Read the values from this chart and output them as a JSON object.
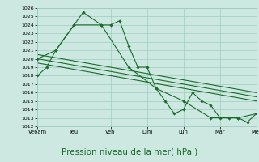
{
  "bg_color": "#cce8e0",
  "grid_color": "#9eccc2",
  "line_color": "#1a6b2a",
  "marker_color": "#1a6b2a",
  "xlabel": "Pression niveau de la mer( hPa )",
  "xlabel_fontsize": 7.5,
  "ylim": [
    1012,
    1026
  ],
  "yticks": [
    1012,
    1013,
    1014,
    1015,
    1016,
    1017,
    1018,
    1019,
    1020,
    1021,
    1022,
    1023,
    1024,
    1025,
    1026
  ],
  "xtick_labels": [
    "Ve6am",
    "Jeu",
    "Ven",
    "Dim",
    "Lun",
    "Mar",
    "Mer"
  ],
  "xtick_positions": [
    0,
    2,
    4,
    6,
    8,
    10,
    12
  ],
  "series1_x": [
    0,
    0.5,
    1.0,
    2.0,
    2.5,
    3.5,
    4.0,
    4.5,
    5.0,
    5.5,
    6.0,
    6.5,
    7.0,
    7.5,
    8.0,
    8.5,
    9.0,
    9.5,
    10.0,
    10.5,
    11.0,
    11.5,
    12.0
  ],
  "series1_y": [
    1018,
    1019,
    1021,
    1024,
    1025.5,
    1024,
    1024,
    1024.5,
    1021.5,
    1019,
    1019,
    1016.5,
    1015,
    1013.5,
    1014,
    1016,
    1015,
    1014.5,
    1013,
    1013,
    1013,
    1012.5,
    1013.5
  ],
  "series2_x": [
    0,
    1.0,
    2.0,
    3.5,
    5.0,
    6.5,
    8.0,
    9.5,
    11.0,
    12.0
  ],
  "series2_y": [
    1020,
    1021,
    1024,
    1024,
    1019,
    1016.5,
    1015,
    1013,
    1013,
    1013.5
  ],
  "series3_x": [
    0,
    12.0
  ],
  "series3_y": [
    1020.0,
    1015.5
  ],
  "series4_x": [
    0,
    12.0
  ],
  "series4_y": [
    1019.5,
    1015.0
  ],
  "series5_x": [
    0,
    12.0
  ],
  "series5_y": [
    1020.5,
    1016.0
  ]
}
